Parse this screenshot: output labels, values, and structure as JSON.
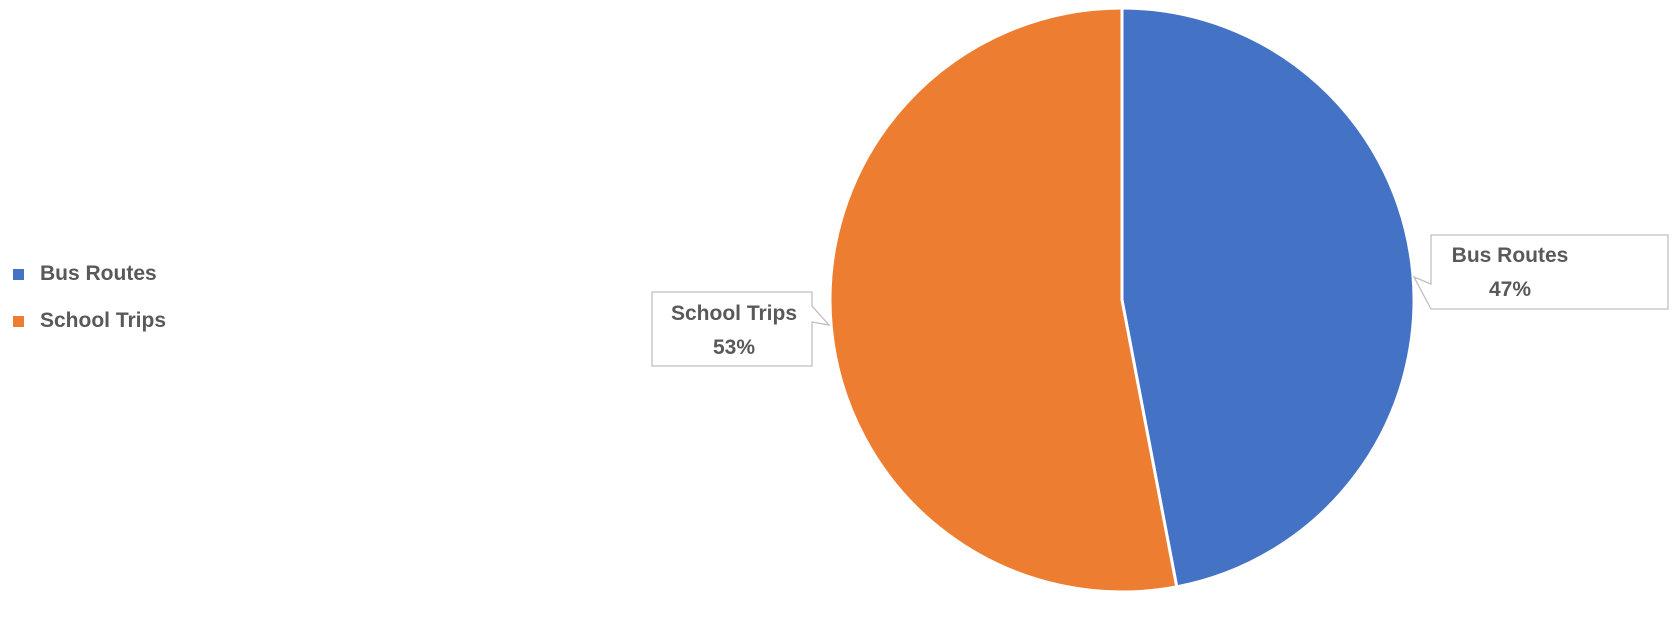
{
  "chart_data": {
    "type": "pie",
    "title": "",
    "categories": [
      "Bus Routes",
      "School Trips"
    ],
    "values": [
      47,
      53
    ],
    "percent_labels": [
      "47%",
      "53%"
    ],
    "colors": [
      "#4472C4",
      "#ED7D31"
    ],
    "start_angle_deg": 0,
    "direction": "clockwise",
    "legend_position": "left"
  }
}
